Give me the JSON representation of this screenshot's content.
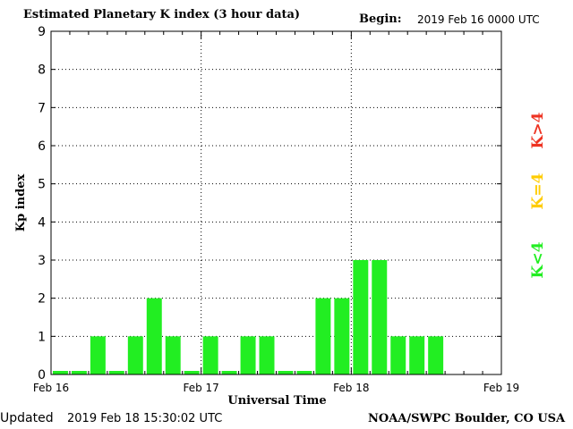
{
  "header": {
    "title": "Estimated Planetary K index (3 hour data)",
    "begin_label": "Begin:",
    "begin_value": "2019 Feb 16 0000 UTC"
  },
  "footer": {
    "updated_label": "Updated",
    "updated_value": "2019 Feb 18 15:30:02 UTC",
    "source": "NOAA/SWPC Boulder, CO USA"
  },
  "legend": {
    "storm": "K>4",
    "active": "K=4",
    "quiet": "K<4"
  },
  "colors": {
    "quiet": "#22ee22",
    "active": "#ffcc00",
    "storm": "#ee3322",
    "axis": "#000000"
  },
  "chart_data": {
    "type": "bar",
    "title": "Estimated Planetary K index (3 hour data)",
    "xlabel": "Universal Time",
    "ylabel": "Kp index",
    "ylim": [
      0,
      9
    ],
    "yticks": [
      "0",
      "1",
      "2",
      "3",
      "4",
      "5",
      "6",
      "7",
      "8",
      "9"
    ],
    "xticks": [
      "Feb 16",
      "Feb 17",
      "Feb 18",
      "Feb 19"
    ],
    "grid": "dotted",
    "interval_hours": 3,
    "values": [
      0,
      0,
      1,
      0,
      1,
      2,
      1,
      0,
      1,
      0,
      1,
      1,
      0,
      0,
      2,
      2,
      3,
      3,
      1,
      1,
      1
    ]
  }
}
